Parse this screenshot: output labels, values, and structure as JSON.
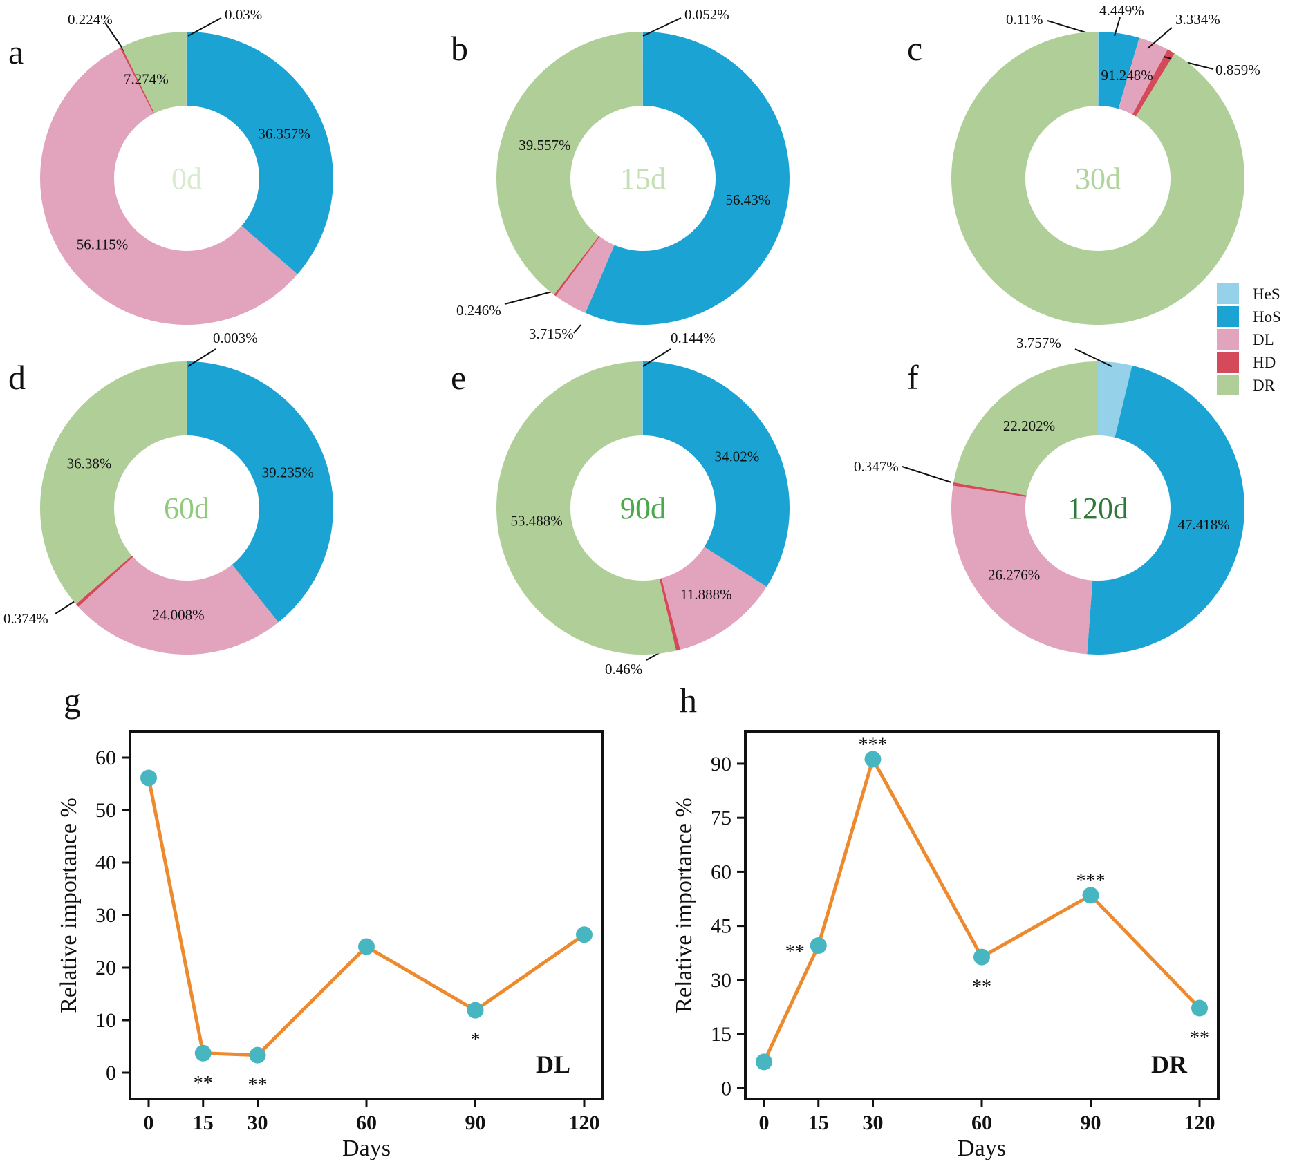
{
  "colors": {
    "HeS": "#95d1e8",
    "HoS": "#1aa3d3",
    "DL": "#e2a3bd",
    "HD": "#d44a5a",
    "DR": "#b0cf98",
    "line": "#ee8a2e",
    "marker": "#48b6c0"
  },
  "legend": [
    "HeS",
    "HoS",
    "DL",
    "HD",
    "DR"
  ],
  "chart_data": [
    {
      "type": "pie",
      "panel": "a",
      "center_label": "0d",
      "center_color": "#d8ebce",
      "slices": [
        {
          "category": "HoS",
          "value": 36.357,
          "label": "36.357%"
        },
        {
          "category": "DL",
          "value": 56.115,
          "label": "56.115%"
        },
        {
          "category": "HD",
          "value": 0.224,
          "label": "0.224%"
        },
        {
          "category": "DR",
          "value": 7.274,
          "label": "7.274%"
        },
        {
          "category": "HeS",
          "value": 0.03,
          "label": "0.03%"
        }
      ]
    },
    {
      "type": "pie",
      "panel": "b",
      "center_label": "15d",
      "center_color": "#c3e0b5",
      "slices": [
        {
          "category": "HoS",
          "value": 56.43,
          "label": "56.43%"
        },
        {
          "category": "DL",
          "value": 3.715,
          "label": "3.715%"
        },
        {
          "category": "HD",
          "value": 0.246,
          "label": "0.246%"
        },
        {
          "category": "DR",
          "value": 39.557,
          "label": "39.557%"
        },
        {
          "category": "HeS",
          "value": 0.052,
          "label": "0.052%"
        }
      ]
    },
    {
      "type": "pie",
      "panel": "c",
      "center_label": "30d",
      "center_color": "#b0d59c",
      "slices": [
        {
          "category": "HeS",
          "value": 0.11,
          "label": "0.11%"
        },
        {
          "category": "HoS",
          "value": 4.449,
          "label": "4.449%"
        },
        {
          "category": "DL",
          "value": 3.334,
          "label": "3.334%"
        },
        {
          "category": "HD",
          "value": 0.859,
          "label": "0.859%"
        },
        {
          "category": "DR",
          "value": 91.248,
          "label": "91.248%"
        }
      ]
    },
    {
      "type": "pie",
      "panel": "d",
      "center_label": "60d",
      "center_color": "#8fca7e",
      "slices": [
        {
          "category": "HoS",
          "value": 39.235,
          "label": "39.235%"
        },
        {
          "category": "DL",
          "value": 24.008,
          "label": "24.008%"
        },
        {
          "category": "HD",
          "value": 0.374,
          "label": "0.374%"
        },
        {
          "category": "DR",
          "value": 36.38,
          "label": "36.38%"
        },
        {
          "category": "HeS",
          "value": 0.003,
          "label": "0.003%"
        }
      ]
    },
    {
      "type": "pie",
      "panel": "e",
      "center_label": "90d",
      "center_color": "#4aa84a",
      "slices": [
        {
          "category": "HoS",
          "value": 34.02,
          "label": "34.02%"
        },
        {
          "category": "DL",
          "value": 11.888,
          "label": "11.888%"
        },
        {
          "category": "HD",
          "value": 0.46,
          "label": "0.46%"
        },
        {
          "category": "DR",
          "value": 53.488,
          "label": "53.488%"
        },
        {
          "category": "HeS",
          "value": 0.144,
          "label": "0.144%"
        }
      ]
    },
    {
      "type": "pie",
      "panel": "f",
      "center_label": "120d",
      "center_color": "#2f7a3a",
      "slices": [
        {
          "category": "HeS",
          "value": 3.757,
          "label": "3.757%"
        },
        {
          "category": "HoS",
          "value": 47.418,
          "label": "47.418%"
        },
        {
          "category": "DL",
          "value": 26.276,
          "label": "26.276%"
        },
        {
          "category": "HD",
          "value": 0.347,
          "label": "0.347%"
        },
        {
          "category": "DR",
          "value": 22.202,
          "label": "22.202%"
        }
      ]
    },
    {
      "type": "line",
      "panel": "g",
      "series_label": "DL",
      "xlabel": "Days",
      "ylabel": "Relative importance %",
      "x": [
        0,
        15,
        30,
        60,
        90,
        120
      ],
      "x_tick_labels": [
        "0",
        "15",
        "30",
        "60",
        "90",
        "120"
      ],
      "y": [
        56.115,
        3.715,
        3.334,
        24.008,
        11.888,
        26.276
      ],
      "significance": [
        "",
        "**",
        "**",
        "",
        "*",
        ""
      ],
      "yticks": [
        0,
        10,
        20,
        30,
        40,
        50,
        60
      ],
      "ytick_labels": [
        "0",
        "10",
        "20",
        "30",
        "40",
        "50",
        "60"
      ],
      "ylim": [
        -5,
        65
      ]
    },
    {
      "type": "line",
      "panel": "h",
      "series_label": "DR",
      "xlabel": "Days",
      "ylabel": "Relative importance %",
      "x": [
        0,
        15,
        30,
        60,
        90,
        120
      ],
      "x_tick_labels": [
        "0",
        "15",
        "30",
        "60",
        "90",
        "120"
      ],
      "y": [
        7.274,
        39.557,
        91.248,
        36.38,
        53.488,
        22.202
      ],
      "significance": [
        "",
        "**",
        "***",
        "**",
        "***",
        "**"
      ],
      "yticks": [
        0,
        15,
        30,
        45,
        60,
        75,
        90
      ],
      "ytick_labels": [
        "0",
        "15",
        "30",
        "45",
        "60",
        "75",
        "90"
      ],
      "ylim": [
        -3,
        99
      ]
    }
  ]
}
